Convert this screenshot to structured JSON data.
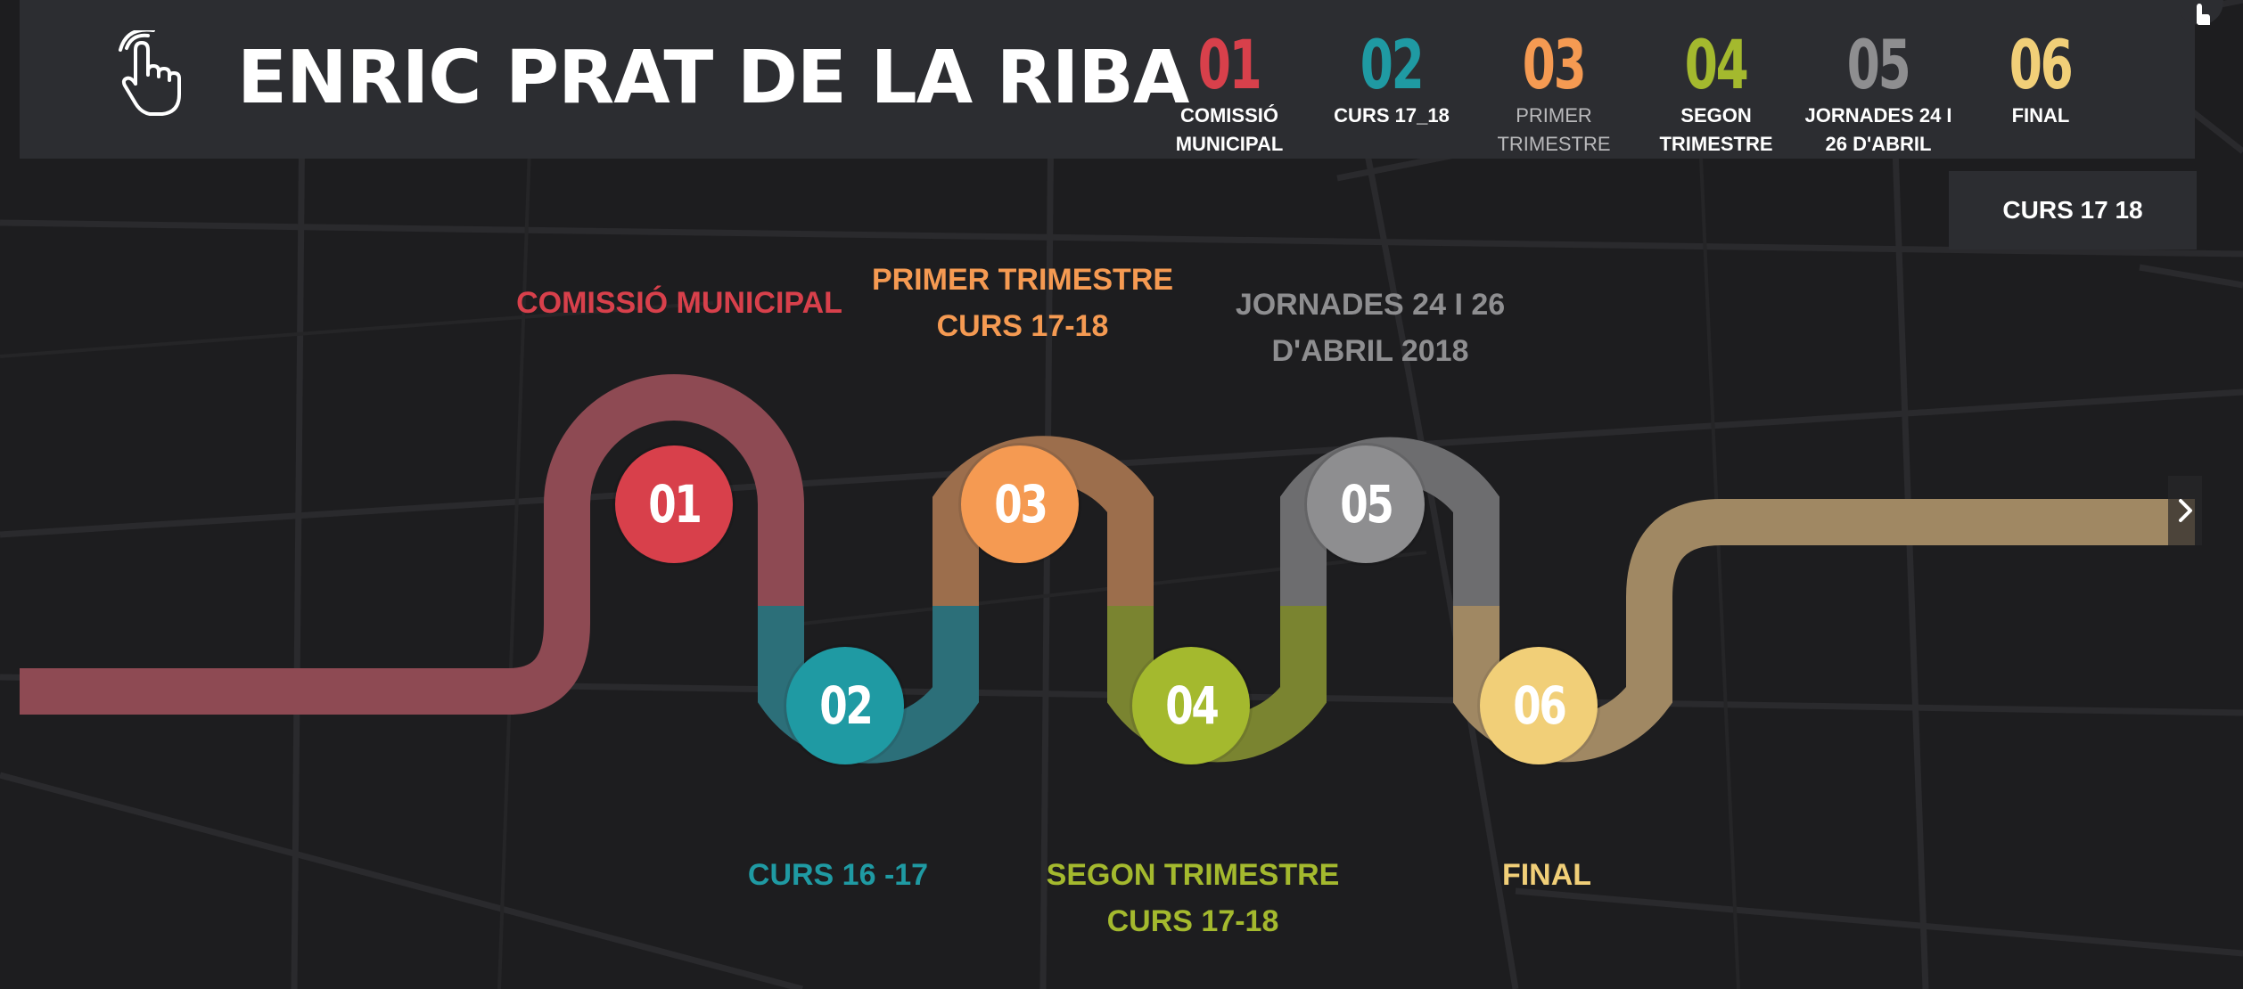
{
  "header": {
    "title": "ENRIC PRAT DE LA RIBA",
    "hand_icon": "pointer-hand-icon",
    "nav": [
      {
        "num": "01",
        "label_1": "COMISSIÓ",
        "label_2": "MUNICIPAL",
        "color": "#d8404b"
      },
      {
        "num": "02",
        "label_1": "CURS 17_18",
        "label_2": "",
        "color": "#1f9aa3"
      },
      {
        "num": "03",
        "label_1": "PRIMER",
        "label_2": "TRIMESTRE",
        "color": "#f59a52"
      },
      {
        "num": "04",
        "label_1": "SEGON",
        "label_2": "TRIMESTRE",
        "color": "#a4b92e"
      },
      {
        "num": "05",
        "label_1": "JORNADES 24 I",
        "label_2": "26 D'ABRIL",
        "color": "#8e8e90"
      },
      {
        "num": "06",
        "label_1": "FINAL",
        "label_2": "",
        "color": "#f1cf78"
      }
    ]
  },
  "curs_button": "CURS 17 18",
  "timeline": {
    "milestones": [
      {
        "num": "01",
        "color": "#d8404b",
        "road": "#8e4a53"
      },
      {
        "num": "02",
        "color": "#1f9aa3",
        "road": "#2c6f79"
      },
      {
        "num": "03",
        "color": "#f59a52",
        "road": "#9c6e4c"
      },
      {
        "num": "04",
        "color": "#a4b92e",
        "road": "#7a8430"
      },
      {
        "num": "05",
        "color": "#8e8e90",
        "road": "#6d6d6f"
      },
      {
        "num": "06",
        "color": "#f1cf78",
        "road": "#a08863"
      }
    ],
    "labels": {
      "l1": "COMISSIÓ MUNICIPAL",
      "l2": "CURS 16 -17",
      "l3a": "PRIMER TRIMESTRE",
      "l3b": "CURS 17-18",
      "l4a": "SEGON TRIMESTRE",
      "l4b": "CURS 17-18",
      "l5a": "JORNADES 24 I 26",
      "l5b": "D'ABRIL 2018",
      "l6": "FINAL"
    }
  }
}
